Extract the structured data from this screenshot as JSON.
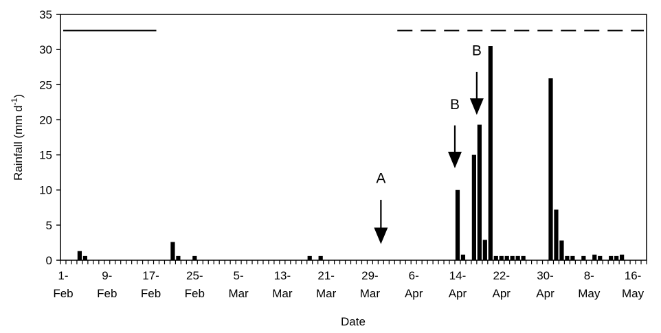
{
  "chart_data": {
    "type": "bar",
    "xlabel": "Date",
    "ylabel": "Rainfall (mm d",
    "ylabel_sup": "-1",
    "ylabel_close": ")",
    "ylim": [
      0,
      35
    ],
    "yticks": [
      0,
      5,
      10,
      15,
      20,
      25,
      30,
      35
    ],
    "x_range_days": [
      1,
      107
    ],
    "date_start": "1-Feb",
    "xticks": [
      {
        "day": 1,
        "top": "1-",
        "bottom": "Feb"
      },
      {
        "day": 9,
        "top": "9-",
        "bottom": "Feb"
      },
      {
        "day": 17,
        "top": "17-",
        "bottom": "Feb"
      },
      {
        "day": 25,
        "top": "25-",
        "bottom": "Feb"
      },
      {
        "day": 33,
        "top": "5-",
        "bottom": "Mar"
      },
      {
        "day": 41,
        "top": "13-",
        "bottom": "Mar"
      },
      {
        "day": 49,
        "top": "21-",
        "bottom": "Mar"
      },
      {
        "day": 57,
        "top": "29-",
        "bottom": "Mar"
      },
      {
        "day": 65,
        "top": "6-",
        "bottom": "Apr"
      },
      {
        "day": 73,
        "top": "14-",
        "bottom": "Apr"
      },
      {
        "day": 81,
        "top": "22-",
        "bottom": "Apr"
      },
      {
        "day": 89,
        "top": "30-",
        "bottom": "Apr"
      },
      {
        "day": 97,
        "top": "8-",
        "bottom": "May"
      },
      {
        "day": 105,
        "top": "16-",
        "bottom": "May"
      }
    ],
    "bars": [
      {
        "day": 4,
        "value": 1.3
      },
      {
        "day": 5,
        "value": 0.6
      },
      {
        "day": 21,
        "value": 2.6
      },
      {
        "day": 22,
        "value": 0.6
      },
      {
        "day": 25,
        "value": 0.6
      },
      {
        "day": 46,
        "value": 0.6
      },
      {
        "day": 48,
        "value": 0.6
      },
      {
        "day": 73,
        "value": 10.0
      },
      {
        "day": 74,
        "value": 0.8
      },
      {
        "day": 76,
        "value": 15.0
      },
      {
        "day": 77,
        "value": 19.3
      },
      {
        "day": 78,
        "value": 2.9
      },
      {
        "day": 79,
        "value": 30.5
      },
      {
        "day": 80,
        "value": 0.6
      },
      {
        "day": 81,
        "value": 0.6
      },
      {
        "day": 82,
        "value": 0.6
      },
      {
        "day": 83,
        "value": 0.6
      },
      {
        "day": 84,
        "value": 0.6
      },
      {
        "day": 85,
        "value": 0.6
      },
      {
        "day": 90,
        "value": 25.9
      },
      {
        "day": 91,
        "value": 7.2
      },
      {
        "day": 92,
        "value": 2.8
      },
      {
        "day": 93,
        "value": 0.6
      },
      {
        "day": 94,
        "value": 0.6
      },
      {
        "day": 96,
        "value": 0.6
      },
      {
        "day": 98,
        "value": 0.8
      },
      {
        "day": 99,
        "value": 0.6
      },
      {
        "day": 101,
        "value": 0.6
      },
      {
        "day": 102,
        "value": 0.6
      },
      {
        "day": 103,
        "value": 0.8
      }
    ],
    "period_lines": [
      {
        "style": "solid",
        "from_day": 1,
        "to_day": 18,
        "y": 32.7
      },
      {
        "style": "dashed",
        "from_day": 62,
        "to_day": 107,
        "y": 32.7
      }
    ],
    "annotations": [
      {
        "label": "A",
        "day": 59,
        "label_y": 11,
        "arrow_top": 8.6,
        "arrow_tip": 2.3
      },
      {
        "label": "B",
        "day": 72.5,
        "label_y": 21.5,
        "arrow_top": 19.2,
        "arrow_tip": 13.1
      },
      {
        "label": "B",
        "day": 76.5,
        "label_y": 29.2,
        "arrow_top": 26.8,
        "arrow_tip": 20.7
      }
    ]
  }
}
